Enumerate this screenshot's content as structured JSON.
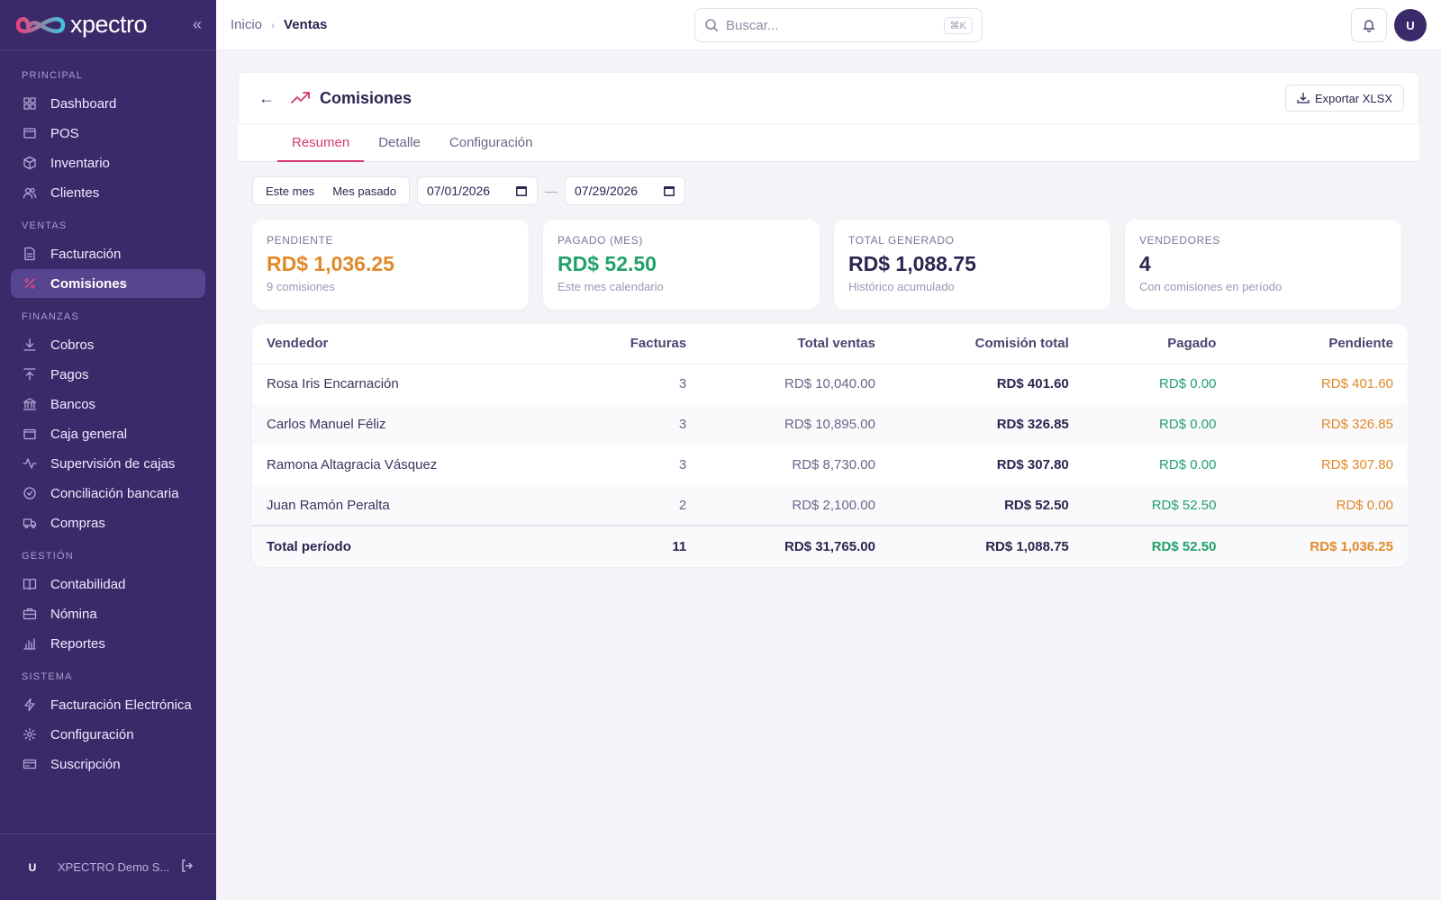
{
  "brand": {
    "name": "xpectro"
  },
  "sidebar": {
    "sections": [
      {
        "title": "PRINCIPAL",
        "items": [
          {
            "label": "Dashboard",
            "icon": "grid-icon"
          },
          {
            "label": "POS",
            "icon": "store-icon"
          },
          {
            "label": "Inventario",
            "icon": "box-icon"
          },
          {
            "label": "Clientes",
            "icon": "users-icon"
          }
        ]
      },
      {
        "title": "VENTAS",
        "items": [
          {
            "label": "Facturación",
            "icon": "file-icon"
          },
          {
            "label": "Comisiones",
            "icon": "percent-icon",
            "active": true
          }
        ]
      },
      {
        "title": "FINANZAS",
        "items": [
          {
            "label": "Cobros",
            "icon": "download-icon"
          },
          {
            "label": "Pagos",
            "icon": "upload-icon"
          },
          {
            "label": "Bancos",
            "icon": "bank-icon"
          },
          {
            "label": "Caja general",
            "icon": "wallet-icon"
          },
          {
            "label": "Supervisión de cajas",
            "icon": "activity-icon"
          },
          {
            "label": "Conciliación bancaria",
            "icon": "check-circle-icon"
          },
          {
            "label": "Compras",
            "icon": "truck-icon"
          }
        ]
      },
      {
        "title": "GESTIÓN",
        "items": [
          {
            "label": "Contabilidad",
            "icon": "book-icon"
          },
          {
            "label": "Nómina",
            "icon": "briefcase-icon"
          },
          {
            "label": "Reportes",
            "icon": "bar-chart-icon"
          }
        ]
      },
      {
        "title": "SISTEMA",
        "items": [
          {
            "label": "Facturación Electrónica",
            "icon": "zap-icon"
          },
          {
            "label": "Configuración",
            "icon": "gear-icon"
          },
          {
            "label": "Suscripción",
            "icon": "credit-card-icon"
          }
        ]
      }
    ],
    "footer": {
      "avatar": "U",
      "org": "XPECTRO Demo S..."
    }
  },
  "topbar": {
    "breadcrumb": {
      "root": "Inicio",
      "current": "Ventas"
    },
    "search": {
      "placeholder": "Buscar...",
      "shortcut": "⌘K"
    },
    "avatar": "U"
  },
  "page": {
    "title": "Comisiones",
    "export_label": "Exportar XLSX",
    "tabs": [
      {
        "label": "Resumen",
        "active": true
      },
      {
        "label": "Detalle"
      },
      {
        "label": "Configuración"
      }
    ],
    "filters": {
      "presets": [
        "Este mes",
        "Mes pasado"
      ],
      "date_from": "07/01/2026",
      "date_to": "07/29/2026"
    },
    "cards": [
      {
        "label": "PENDIENTE",
        "value": "RD$ 1,036.25",
        "sub": "9 comisiones",
        "color": "#e0892a"
      },
      {
        "label": "PAGADO (MES)",
        "value": "RD$ 52.50",
        "sub": "Este mes calendario",
        "color": "#22a06b"
      },
      {
        "label": "TOTAL GENERADO",
        "value": "RD$ 1,088.75",
        "sub": "Histórico acumulado",
        "color": "#2b2550"
      },
      {
        "label": "VENDEDORES",
        "value": "4",
        "sub": "Con comisiones en período",
        "color": "#2b2550"
      }
    ],
    "table": {
      "columns": [
        "Vendedor",
        "Facturas",
        "Total ventas",
        "Comisión total",
        "Pagado",
        "Pendiente"
      ],
      "rows": [
        [
          "Rosa Iris Encarnación",
          "3",
          "RD$ 10,040.00",
          "RD$ 401.60",
          "RD$ 0.00",
          "RD$ 401.60"
        ],
        [
          "Carlos Manuel Féliz",
          "3",
          "RD$ 10,895.00",
          "RD$ 326.85",
          "RD$ 0.00",
          "RD$ 326.85"
        ],
        [
          "Ramona Altagracia Vásquez",
          "3",
          "RD$ 8,730.00",
          "RD$ 307.80",
          "RD$ 0.00",
          "RD$ 307.80"
        ],
        [
          "Juan Ramón Peralta",
          "2",
          "RD$ 2,100.00",
          "RD$ 52.50",
          "RD$ 52.50",
          "RD$ 0.00"
        ]
      ],
      "total": [
        "Total período",
        "11",
        "RD$ 31,765.00",
        "RD$ 1,088.75",
        "RD$ 52.50",
        "RD$ 1,036.25"
      ]
    }
  }
}
